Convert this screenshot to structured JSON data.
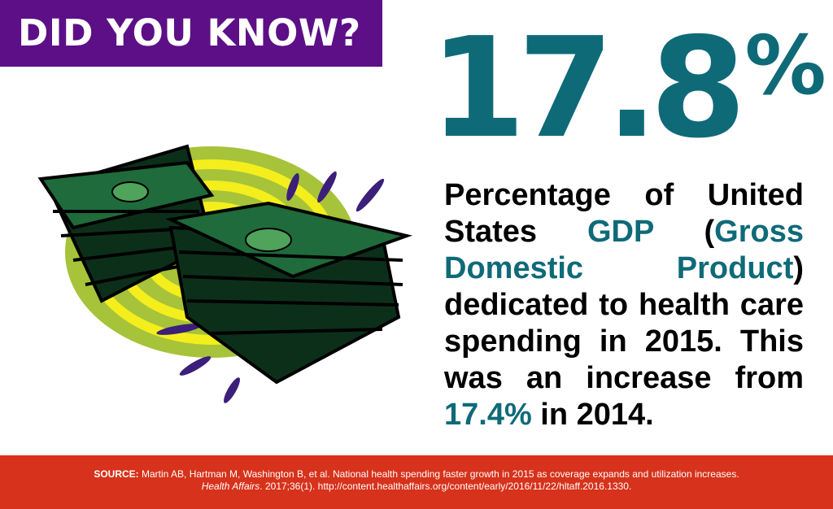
{
  "header": {
    "title": "DID YOU KNOW?"
  },
  "stat": {
    "value": "17.8",
    "unit": "%"
  },
  "description": {
    "parts": [
      "Percentage of United States ",
      "GDP",
      " (",
      "Gross Domestic Product",
      ")",
      " dedicated to health care spending in 2015. This was an increase from ",
      "17.4%",
      " in 2014."
    ]
  },
  "source": {
    "label": "SOURCE:",
    "text": "Martin AB, Hartman M, Washington B, et al. National health spending faster growth in 2015 as coverage expands and utilization increases.",
    "journal": "Health Affairs",
    "citation": ". 2017;36(1). http://content.healthaffairs.org/content/early/2016/11/22/hltaff.2016.1330."
  }
}
